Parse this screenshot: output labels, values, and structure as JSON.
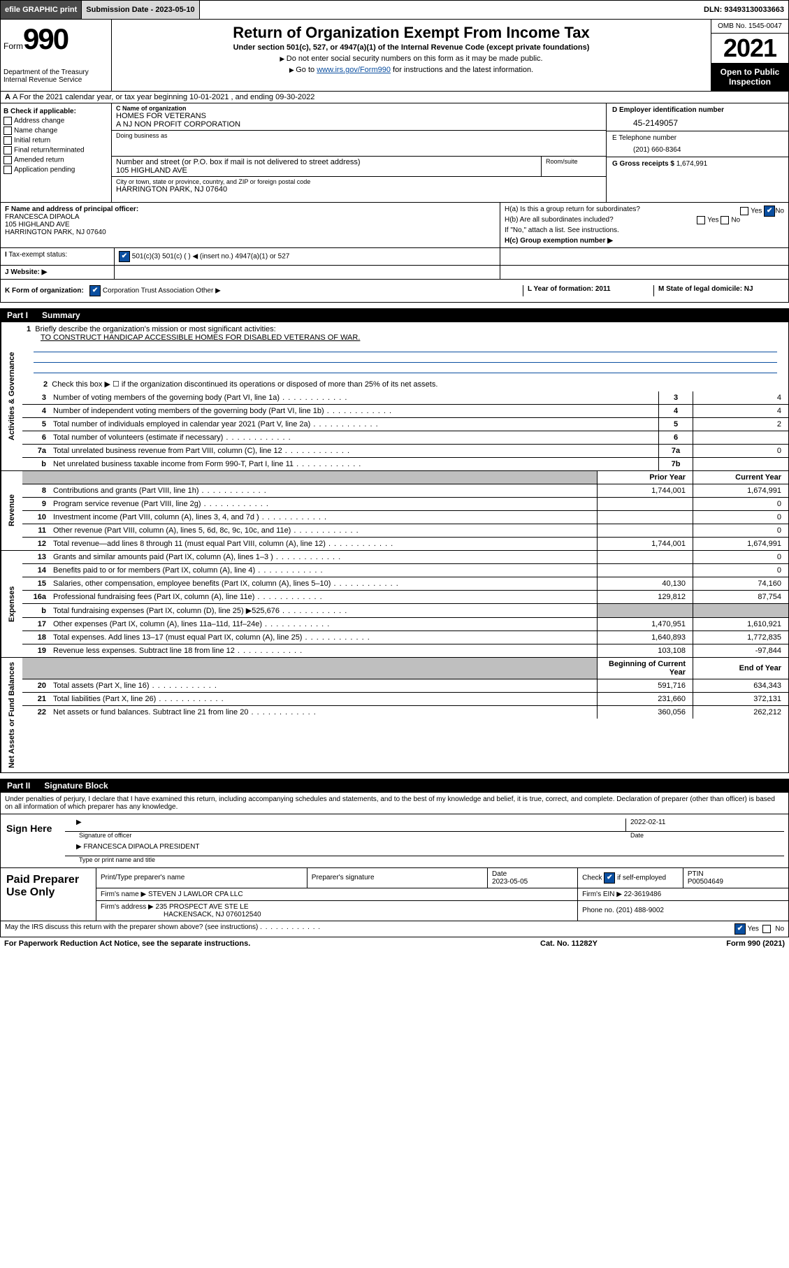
{
  "topbar": {
    "efile": "efile GRAPHIC print",
    "sub_date_lbl": "Submission Date - 2023-05-10",
    "dln": "DLN: 93493130033663"
  },
  "header": {
    "form_lbl": "Form",
    "form_no": "990",
    "dept": "Department of the Treasury\nInternal Revenue Service",
    "title": "Return of Organization Exempt From Income Tax",
    "subtitle": "Under section 501(c), 527, or 4947(a)(1) of the Internal Revenue Code (except private foundations)",
    "instr1": "Do not enter social security numbers on this form as it may be made public.",
    "instr2_pre": "Go to ",
    "instr2_link": "www.irs.gov/Form990",
    "instr2_post": " for instructions and the latest information.",
    "omb": "OMB No. 1545-0047",
    "year": "2021",
    "open": "Open to Public Inspection"
  },
  "row_a": "A For the 2021 calendar year, or tax year beginning 10-01-2021   , and ending 09-30-2022",
  "col_b": {
    "hdr": "B Check if applicable:",
    "items": [
      "Address change",
      "Name change",
      "Initial return",
      "Final return/terminated",
      "Amended return",
      "Application pending"
    ]
  },
  "col_c": {
    "name_lbl": "C Name of organization",
    "name1": "HOMES FOR VETERANS",
    "name2": "A NJ NON PROFIT CORPORATION",
    "dba_lbl": "Doing business as",
    "addr_lbl": "Number and street (or P.O. box if mail is not delivered to street address)",
    "addr": "105 HIGHLAND AVE",
    "room_lbl": "Room/suite",
    "city_lbl": "City or town, state or province, country, and ZIP or foreign postal code",
    "city": "HARRINGTON PARK, NJ  07640"
  },
  "col_d": {
    "ein_lbl": "D Employer identification number",
    "ein": "45-2149057"
  },
  "col_e": {
    "tel_lbl": "E Telephone number",
    "tel": "(201) 660-8364",
    "gross_lbl": "G Gross receipts $",
    "gross": "1,674,991"
  },
  "f": {
    "lbl": "F Name and address of principal officer:",
    "name": "FRANCESCA DIPAOLA",
    "addr1": "105 HIGHLAND AVE",
    "addr2": "HARRINGTON PARK, NJ  07640"
  },
  "h": {
    "a": "H(a)  Is this a group return for subordinates?",
    "b": "H(b)  Are all subordinates included?",
    "note": "If \"No,\" attach a list. See instructions.",
    "c": "H(c)  Group exemption number ▶"
  },
  "i": {
    "lbl": "Tax-exempt status:",
    "opts": "501(c)(3)        501(c) (  ) ◀ (insert no.)        4947(a)(1) or        527"
  },
  "j": {
    "lbl": "Website: ▶"
  },
  "k": {
    "lbl": "K Form of organization:",
    "opts": "Corporation        Trust        Association        Other ▶",
    "l": "L Year of formation: 2011",
    "m": "M State of legal domicile: NJ"
  },
  "parts": {
    "p1": "Part I",
    "p1_ttl": "Summary",
    "p2": "Part II",
    "p2_ttl": "Signature Block"
  },
  "sections": {
    "act": "Activities & Governance",
    "rev": "Revenue",
    "exp": "Expenses",
    "net": "Net Assets or Fund Balances"
  },
  "l1": {
    "txt": "Briefly describe the organization's mission or most significant activities:",
    "mission": "TO CONSTRUCT HANDICAP ACCESSIBLE HOMES FOR DISABLED VETERANS OF WAR."
  },
  "l2": "Check this box ▶ ☐  if the organization discontinued its operations or disposed of more than 25% of its net assets.",
  "lines_gov": [
    {
      "no": "3",
      "txt": "Number of voting members of the governing body (Part VI, line 1a)",
      "box": "3",
      "val": "4"
    },
    {
      "no": "4",
      "txt": "Number of independent voting members of the governing body (Part VI, line 1b)",
      "box": "4",
      "val": "4"
    },
    {
      "no": "5",
      "txt": "Total number of individuals employed in calendar year 2021 (Part V, line 2a)",
      "box": "5",
      "val": "2"
    },
    {
      "no": "6",
      "txt": "Total number of volunteers (estimate if necessary)",
      "box": "6",
      "val": ""
    },
    {
      "no": "7a",
      "txt": "Total unrelated business revenue from Part VIII, column (C), line 12",
      "box": "7a",
      "val": "0"
    },
    {
      "no": "b",
      "txt": "Net unrelated business taxable income from Form 990-T, Part I, line 11",
      "box": "7b",
      "val": ""
    }
  ],
  "col_hdrs": {
    "prior": "Prior Year",
    "curr": "Current Year",
    "beg": "Beginning of Current Year",
    "end": "End of Year"
  },
  "revenue": [
    {
      "no": "8",
      "txt": "Contributions and grants (Part VIII, line 1h)",
      "p": "1,744,001",
      "c": "1,674,991"
    },
    {
      "no": "9",
      "txt": "Program service revenue (Part VIII, line 2g)",
      "p": "",
      "c": "0"
    },
    {
      "no": "10",
      "txt": "Investment income (Part VIII, column (A), lines 3, 4, and 7d )",
      "p": "",
      "c": "0"
    },
    {
      "no": "11",
      "txt": "Other revenue (Part VIII, column (A), lines 5, 6d, 8c, 9c, 10c, and 11e)",
      "p": "",
      "c": "0"
    },
    {
      "no": "12",
      "txt": "Total revenue—add lines 8 through 11 (must equal Part VIII, column (A), line 12)",
      "p": "1,744,001",
      "c": "1,674,991"
    }
  ],
  "expenses": [
    {
      "no": "13",
      "txt": "Grants and similar amounts paid (Part IX, column (A), lines 1–3 )",
      "p": "",
      "c": "0"
    },
    {
      "no": "14",
      "txt": "Benefits paid to or for members (Part IX, column (A), line 4)",
      "p": "",
      "c": "0"
    },
    {
      "no": "15",
      "txt": "Salaries, other compensation, employee benefits (Part IX, column (A), lines 5–10)",
      "p": "40,130",
      "c": "74,160"
    },
    {
      "no": "16a",
      "txt": "Professional fundraising fees (Part IX, column (A), line 11e)",
      "p": "129,812",
      "c": "87,754"
    },
    {
      "no": "b",
      "txt": "Total fundraising expenses (Part IX, column (D), line 25) ▶525,676",
      "p": "GREY",
      "c": "GREY"
    },
    {
      "no": "17",
      "txt": "Other expenses (Part IX, column (A), lines 11a–11d, 11f–24e)",
      "p": "1,470,951",
      "c": "1,610,921"
    },
    {
      "no": "18",
      "txt": "Total expenses. Add lines 13–17 (must equal Part IX, column (A), line 25)",
      "p": "1,640,893",
      "c": "1,772,835"
    },
    {
      "no": "19",
      "txt": "Revenue less expenses. Subtract line 18 from line 12",
      "p": "103,108",
      "c": "-97,844"
    }
  ],
  "net": [
    {
      "no": "20",
      "txt": "Total assets (Part X, line 16)",
      "p": "591,716",
      "c": "634,343"
    },
    {
      "no": "21",
      "txt": "Total liabilities (Part X, line 26)",
      "p": "231,660",
      "c": "372,131"
    },
    {
      "no": "22",
      "txt": "Net assets or fund balances. Subtract line 21 from line 20",
      "p": "360,056",
      "c": "262,212"
    }
  ],
  "sig": {
    "decl": "Under penalties of perjury, I declare that I have examined this return, including accompanying schedules and statements, and to the best of my knowledge and belief, it is true, correct, and complete. Declaration of preparer (other than officer) is based on all information of which preparer has any knowledge.",
    "sign_here": "Sign Here",
    "sig_officer": "Signature of officer",
    "date": "2022-02-11",
    "date_lbl": "Date",
    "name_title": "FRANCESCA DIPAOLA  PRESIDENT",
    "name_lbl": "Type or print name and title"
  },
  "prep": {
    "hdr": "Paid Preparer Use Only",
    "c1": "Print/Type preparer's name",
    "c2": "Preparer's signature",
    "c3_lbl": "Date",
    "c3": "2023-05-05",
    "c4_lbl": "Check",
    "c4_txt": "if self-employed",
    "c5_lbl": "PTIN",
    "c5": "P00504649",
    "firm_name_lbl": "Firm's name      ▶",
    "firm_name": "STEVEN J LAWLOR CPA LLC",
    "firm_ein_lbl": "Firm's EIN ▶",
    "firm_ein": "22-3619486",
    "firm_addr_lbl": "Firm's address ▶",
    "firm_addr1": "235 PROSPECT AVE STE LE",
    "firm_addr2": "HACKENSACK, NJ  076012540",
    "phone_lbl": "Phone no.",
    "phone": "(201) 488-9002"
  },
  "footer": {
    "discuss": "May the IRS discuss this return with the preparer shown above? (see instructions)",
    "paperwork": "For Paperwork Reduction Act Notice, see the separate instructions.",
    "cat": "Cat. No. 11282Y",
    "form": "Form 990 (2021)"
  }
}
